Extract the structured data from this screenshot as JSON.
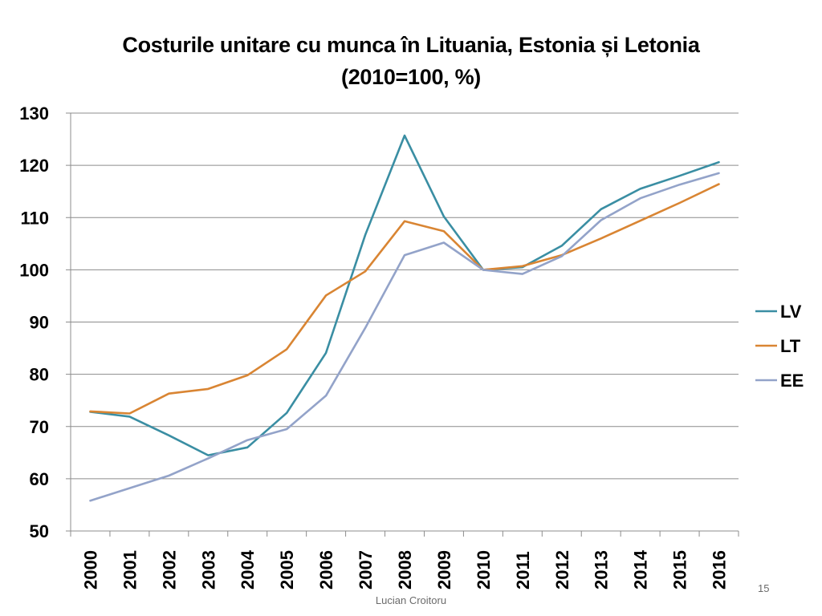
{
  "slide": {
    "title_line1": "Costurile unitare cu munca în Lituania, Estonia și Letonia",
    "title_line2": "(2010=100, %)",
    "footer": "Lucian Croitoru",
    "page_number": "15"
  },
  "chart_data": {
    "type": "line",
    "x": [
      "2000",
      "2001",
      "2002",
      "2003",
      "2004",
      "2005",
      "2006",
      "2007",
      "2008",
      "2009",
      "2010",
      "2011",
      "2012",
      "2013",
      "2014",
      "2015",
      "2016"
    ],
    "ylim": [
      50,
      130
    ],
    "yticks": [
      50,
      60,
      70,
      80,
      90,
      100,
      110,
      120,
      130
    ],
    "grid": "horizontal",
    "legend": "right",
    "series": [
      {
        "name": "LV",
        "color": "#3a8ea3",
        "values": [
          72.8,
          71.9,
          68.3,
          64.5,
          66.0,
          72.6,
          84.1,
          106.7,
          125.7,
          110.2,
          100.0,
          100.5,
          104.6,
          111.6,
          115.5,
          118.0,
          120.6
        ]
      },
      {
        "name": "LT",
        "color": "#d98533",
        "values": [
          72.9,
          72.5,
          76.3,
          77.2,
          79.8,
          84.8,
          95.1,
          99.7,
          109.3,
          107.4,
          100.0,
          100.7,
          102.8,
          106.0,
          109.4,
          112.8,
          116.4
        ]
      },
      {
        "name": "EE",
        "color": "#93a3c9",
        "values": [
          55.8,
          58.2,
          60.6,
          63.9,
          67.4,
          69.5,
          75.9,
          88.9,
          102.8,
          105.2,
          100.0,
          99.2,
          102.6,
          109.5,
          113.7,
          116.3,
          118.5
        ]
      }
    ]
  }
}
